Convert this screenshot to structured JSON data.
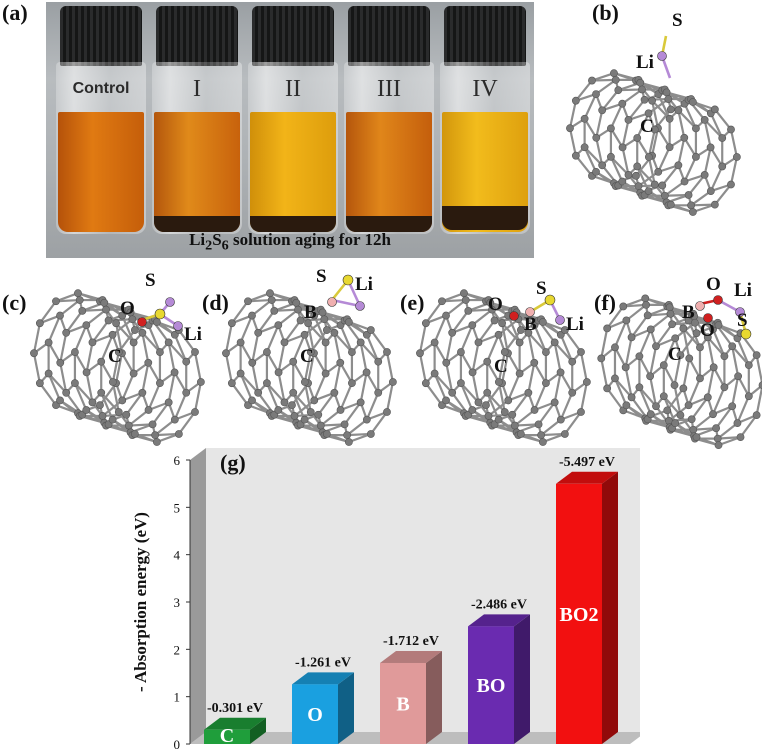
{
  "panels": {
    "a": "(a)",
    "b": "(b)",
    "c": "(c)",
    "d": "(d)",
    "e": "(e)",
    "f": "(f)"
  },
  "photo": {
    "vials": [
      "Control",
      "I",
      "II",
      "III",
      "IV"
    ],
    "caption": "Li2S6 solution aging for 12h"
  },
  "atoms": {
    "b": [
      "S",
      "Li",
      "C"
    ],
    "c": [
      "S",
      "O",
      "Li",
      "C"
    ],
    "d": [
      "S",
      "Li",
      "B",
      "C"
    ],
    "e": [
      "O",
      "S",
      "B",
      "Li",
      "C"
    ],
    "f": [
      "O",
      "Li",
      "B",
      "O",
      "S",
      "C"
    ]
  },
  "colors": {
    "C": "#1f9e3b",
    "O": "#1aa0e0",
    "B": "#e09a9a",
    "BO": "#6a2bb0",
    "BO2": "#f21010"
  },
  "chart_data": {
    "type": "bar",
    "panel_label": "(g)",
    "categories": [
      "C",
      "O",
      "B",
      "BO",
      "BO2"
    ],
    "values": [
      0.301,
      1.261,
      1.712,
      2.486,
      5.497
    ],
    "data_labels": [
      "-0.301 eV",
      "-1.261 eV",
      "-1.712 eV",
      "-2.486 eV",
      "-5.497 eV"
    ],
    "ylabel": "- Absorption energy (eV)",
    "xlabel": "",
    "ylim": [
      0,
      6
    ],
    "yticks": [
      "0",
      "1",
      "2",
      "3",
      "4",
      "5",
      "6"
    ],
    "grid": false,
    "style": "3d"
  }
}
